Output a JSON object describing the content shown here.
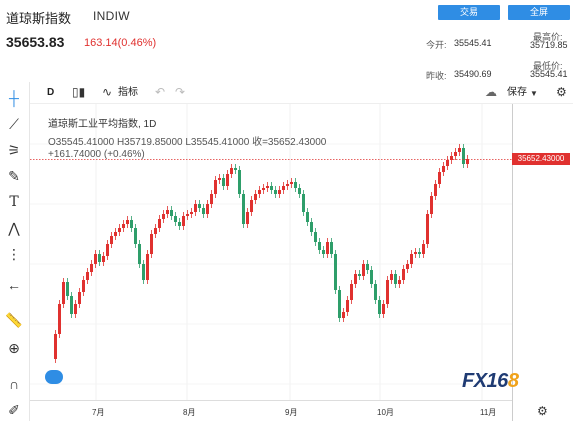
{
  "header": {
    "title": "道琼斯指数",
    "code": "INDIW",
    "trade_button": "交易",
    "fullscreen_button": "全屏",
    "price": "35653.83",
    "change": "163.14(0.46%)",
    "today_open_label": "今开:",
    "today_open_value": "35545.41",
    "high_label": "最高价:",
    "high_value": "35719.85",
    "prev_close_label": "昨收:",
    "prev_close_value": "35490.69",
    "low_label": "最低价:",
    "low_value": "35545.41"
  },
  "toolbar": {
    "interval": "D",
    "indicators_label": "指标",
    "save_label": "保存"
  },
  "legend": {
    "line1": "道琼斯工业平均指数, 1D",
    "line2": "O35545.41000  H35719.85000  L35545.41000  收=35652.43000",
    "line3": "+161.74000 (+0.46%)"
  },
  "last_price_tag": "35652.43000",
  "x_labels": [
    "7月",
    "8月",
    "9月",
    "10月",
    "11月"
  ],
  "logo": {
    "main": "FX16",
    "accent": "8"
  },
  "colors": {
    "up": "#e0312f",
    "down": "#2e9e6a",
    "accent": "#2f8de4"
  }
}
